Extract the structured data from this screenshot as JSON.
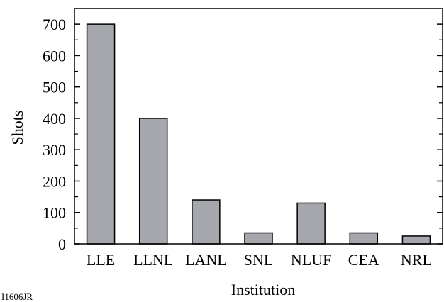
{
  "chart_data": {
    "type": "bar",
    "categories": [
      "LLE",
      "LLNL",
      "LANL",
      "SNL",
      "NLUF",
      "CEA",
      "NRL"
    ],
    "values": [
      700,
      400,
      140,
      35,
      130,
      35,
      25
    ],
    "title": "",
    "xlabel": "Institution",
    "ylabel": "Shots",
    "ylim": [
      0,
      750
    ],
    "yticks": [
      0,
      100,
      200,
      300,
      400,
      500,
      600,
      700
    ],
    "grid": false,
    "bar_color": "#a6a7ac",
    "annotations": [
      "I1606JR"
    ]
  }
}
